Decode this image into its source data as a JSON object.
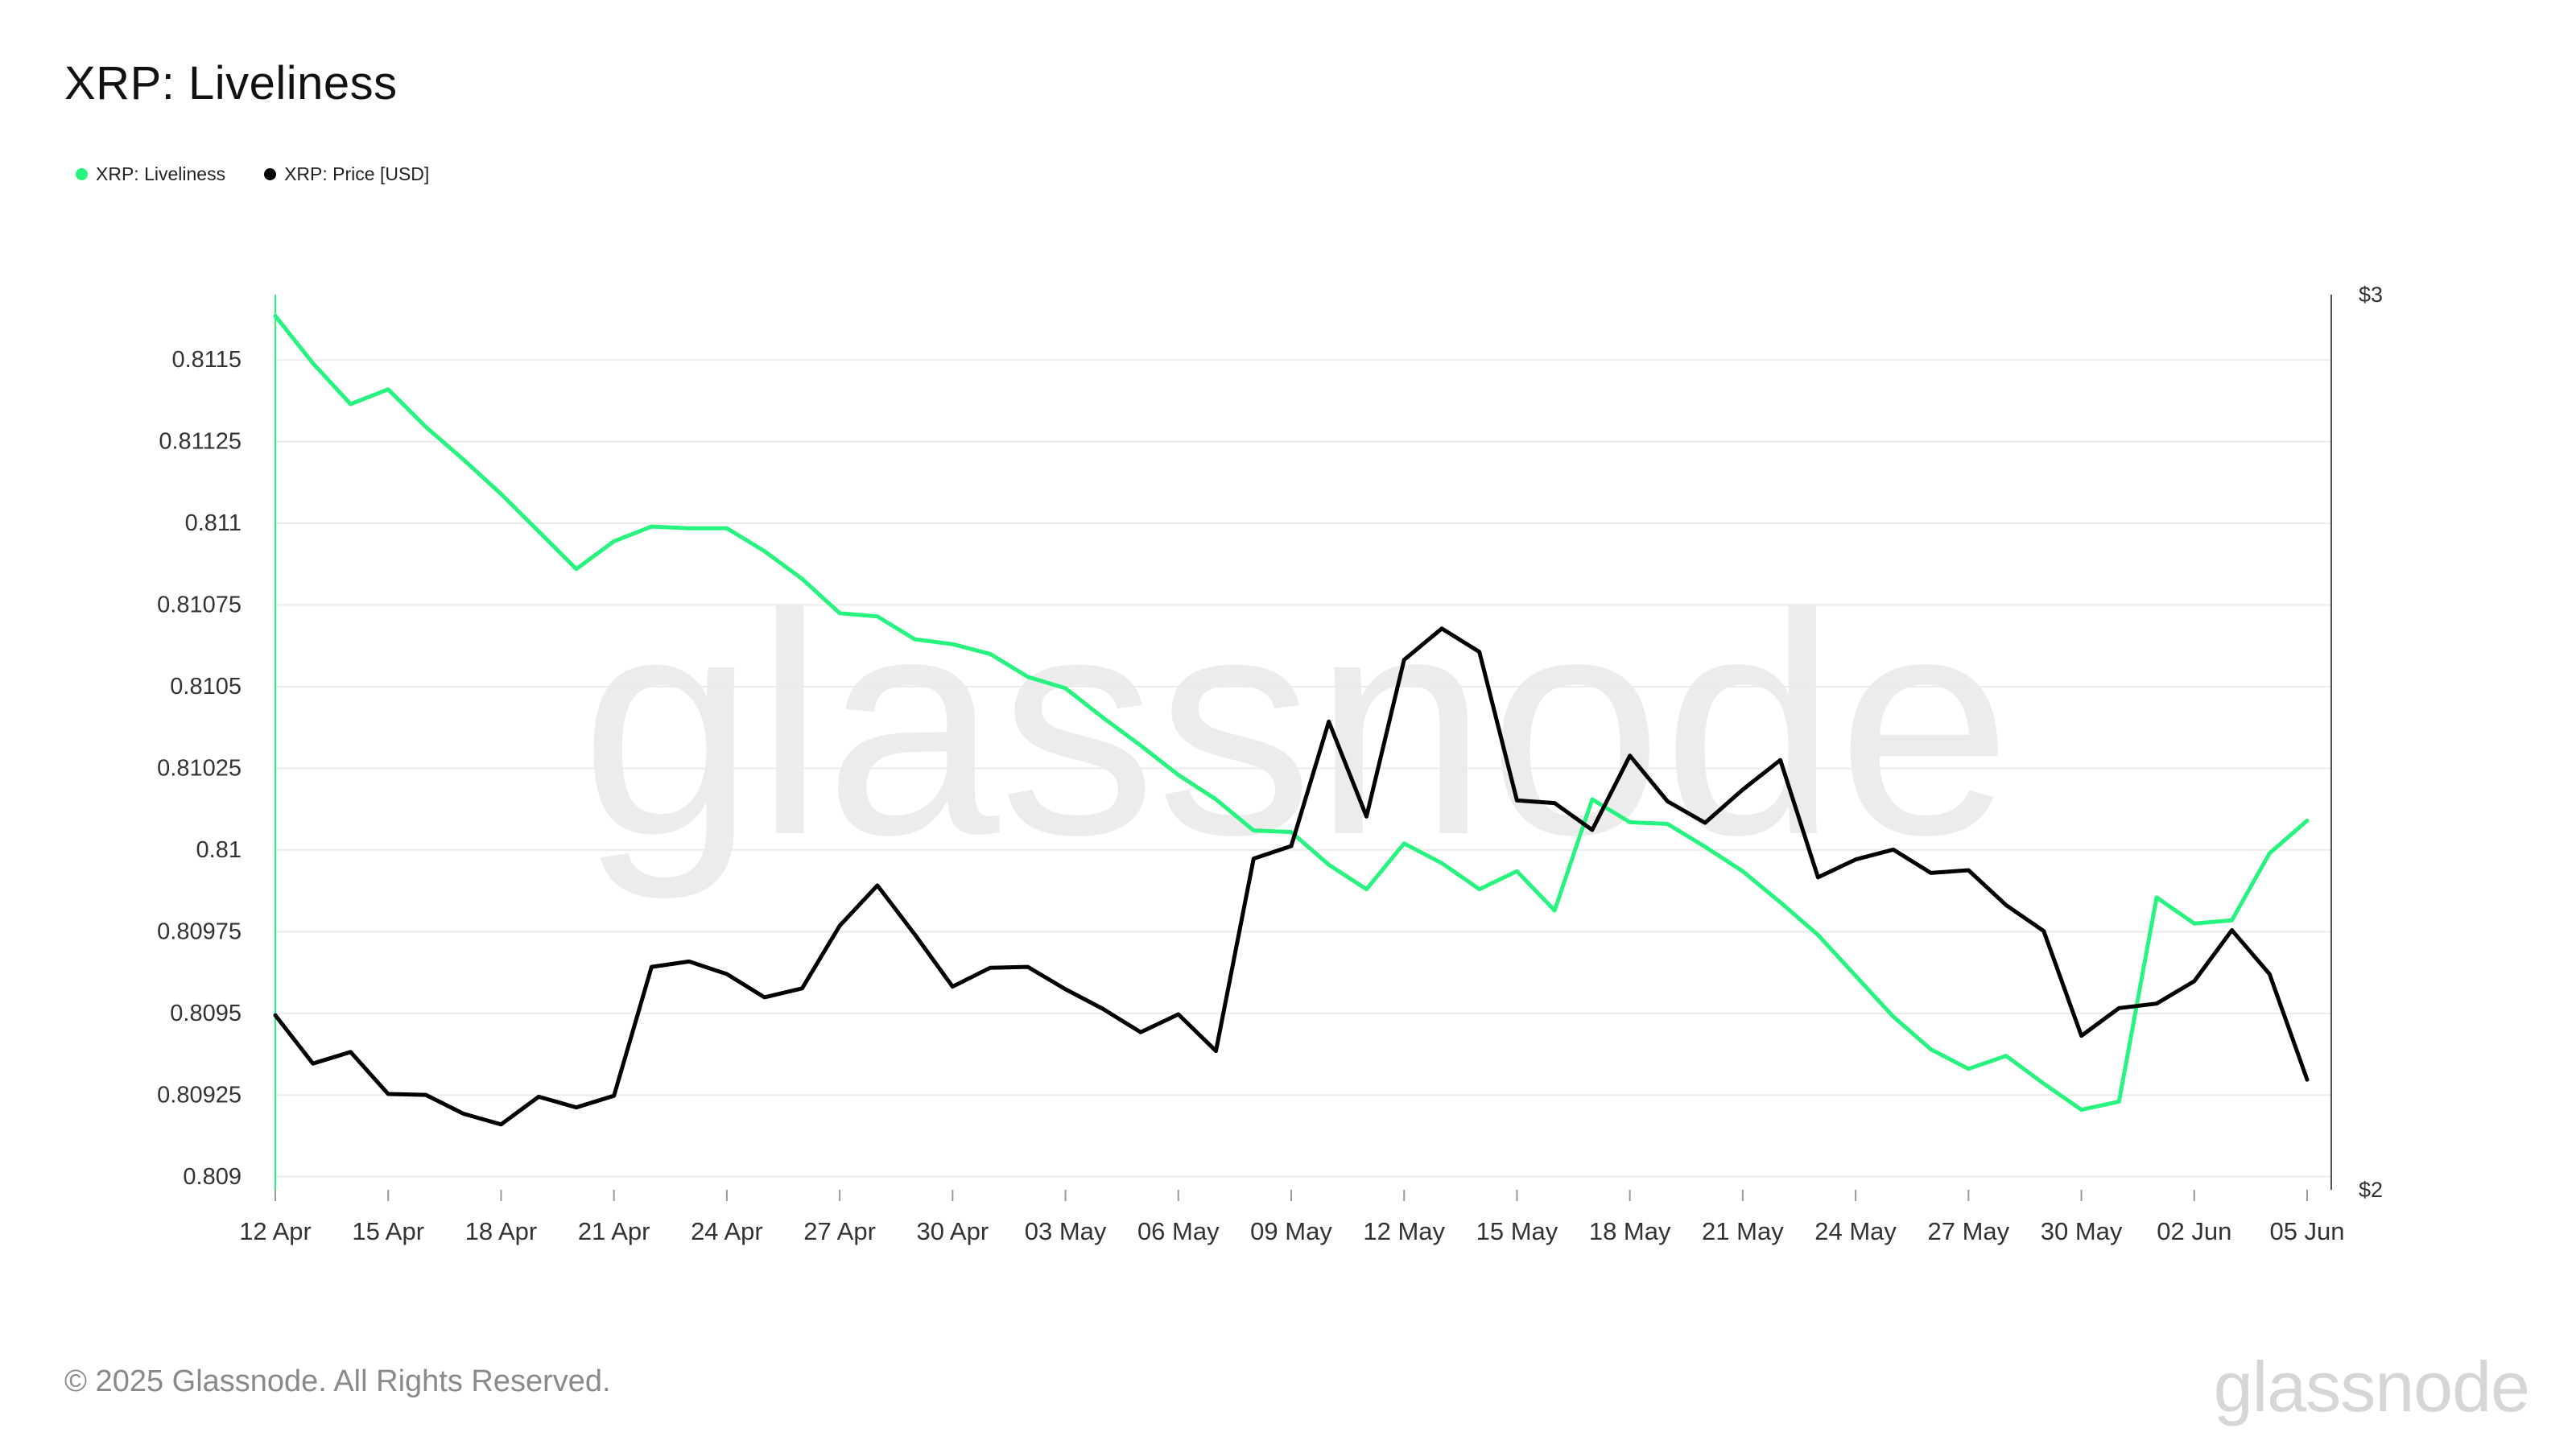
{
  "title": "XRP: Liveliness",
  "legend": [
    {
      "label": "XRP: Liveliness",
      "color": "#27F47E"
    },
    {
      "label": "XRP: Price [USD]",
      "color": "#000000"
    }
  ],
  "footer": {
    "copyright": "© 2025 Glassnode. All Rights Reserved.",
    "logo": "glassnode",
    "watermark": "glassnode"
  },
  "chart_data": {
    "type": "line",
    "x": [
      "12 Apr",
      "13 Apr",
      "14 Apr",
      "15 Apr",
      "16 Apr",
      "17 Apr",
      "18 Apr",
      "19 Apr",
      "20 Apr",
      "21 Apr",
      "22 Apr",
      "23 Apr",
      "24 Apr",
      "25 Apr",
      "26 Apr",
      "27 Apr",
      "28 Apr",
      "29 Apr",
      "30 Apr",
      "01 May",
      "02 May",
      "03 May",
      "04 May",
      "05 May",
      "06 May",
      "07 May",
      "08 May",
      "09 May",
      "10 May",
      "11 May",
      "12 May",
      "13 May",
      "14 May",
      "15 May",
      "16 May",
      "17 May",
      "18 May",
      "19 May",
      "20 May",
      "21 May",
      "22 May",
      "23 May",
      "24 May",
      "25 May",
      "26 May",
      "27 May",
      "28 May",
      "29 May",
      "30 May",
      "31 May",
      "01 Jun",
      "02 Jun",
      "03 Jun",
      "04 Jun",
      "05 Jun"
    ],
    "x_ticks": [
      "12 Apr",
      "15 Apr",
      "18 Apr",
      "21 Apr",
      "24 Apr",
      "27 Apr",
      "30 Apr",
      "03 May",
      "06 May",
      "09 May",
      "12 May",
      "15 May",
      "18 May",
      "21 May",
      "24 May",
      "27 May",
      "30 May",
      "02 Jun",
      "05 Jun"
    ],
    "y_left": {
      "ticks": [
        "0.809",
        "0.80925",
        "0.8095",
        "0.80975",
        "0.81",
        "0.81025",
        "0.8105",
        "0.81075",
        "0.811",
        "0.81125",
        "0.8115"
      ],
      "tick_values": [
        0.809,
        0.80925,
        0.8095,
        0.80975,
        0.81,
        0.81025,
        0.8105,
        0.81075,
        0.811,
        0.81125,
        0.8115
      ],
      "range": [
        0.80896,
        0.8117
      ]
    },
    "y_right": {
      "ticks": [
        "$2",
        "$3"
      ],
      "tick_values": [
        2,
        3
      ],
      "range": [
        2,
        3
      ]
    },
    "series": [
      {
        "name": "XRP: Liveliness",
        "axis": "left",
        "color": "#27F47E",
        "values": [
          0.811635,
          0.81149,
          0.811365,
          0.81141,
          0.811295,
          0.811195,
          0.81109,
          0.810975,
          0.81086,
          0.810945,
          0.81099,
          0.810985,
          0.810985,
          0.810915,
          0.81083,
          0.810725,
          0.810715,
          0.810645,
          0.81063,
          0.8106,
          0.81053,
          0.810495,
          0.810405,
          0.81032,
          0.81023,
          0.810155,
          0.81006,
          0.810055,
          0.809955,
          0.80988,
          0.81002,
          0.80996,
          0.80988,
          0.809935,
          0.809815,
          0.810155,
          0.810085,
          0.81008,
          0.81001,
          0.809935,
          0.80984,
          0.80974,
          0.809615,
          0.80949,
          0.80939,
          0.80933,
          0.80937,
          0.809285,
          0.809205,
          0.80923,
          0.809855,
          0.809775,
          0.809785,
          0.80999,
          0.81009
        ]
      },
      {
        "name": "XRP: Price [USD]",
        "axis": "right",
        "color": "#000000",
        "values": [
          2.195,
          2.141,
          2.154,
          2.107,
          2.106,
          2.085,
          2.073,
          2.104,
          2.092,
          2.105,
          2.249,
          2.255,
          2.241,
          2.215,
          2.225,
          2.295,
          2.34,
          2.285,
          2.227,
          2.248,
          2.249,
          2.224,
          2.202,
          2.176,
          2.196,
          2.155,
          2.37,
          2.384,
          2.523,
          2.417,
          2.592,
          2.627,
          2.601,
          2.435,
          2.432,
          2.402,
          2.485,
          2.434,
          2.41,
          2.447,
          2.48,
          2.349,
          2.369,
          2.38,
          2.354,
          2.357,
          2.318,
          2.289,
          2.172,
          2.203,
          2.208,
          2.233,
          2.29,
          2.241,
          2.123
        ]
      }
    ],
    "grid": true,
    "legend_position": "top-left"
  }
}
